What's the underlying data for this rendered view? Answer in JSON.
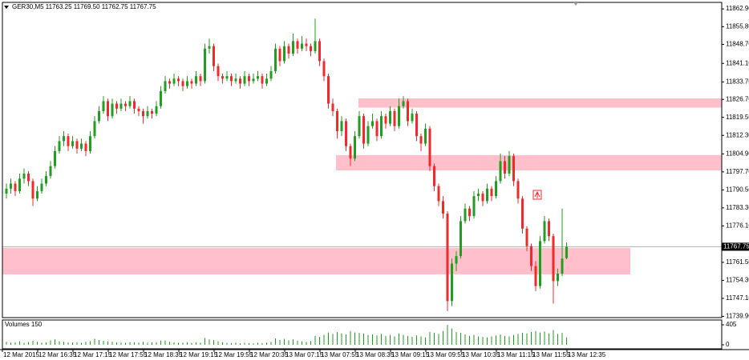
{
  "chart_data": {
    "type": "candlestick",
    "info": "GER30,M5  11763.25 11769.50 11762.75 11767.75",
    "up_color": "#1f9e1f",
    "down_color": "#ee2b2b",
    "zone_color": "#ffc0cb",
    "ylim": [
      11739.4,
      11865.5
    ],
    "yticks": [
      {
        "value": 11862.9,
        "label": "11862.90"
      },
      {
        "value": 11855.8,
        "label": "11855.80"
      },
      {
        "value": 11848.7,
        "label": "11848.70"
      },
      {
        "value": 11841.1,
        "label": "11841.10"
      },
      {
        "value": 11833.7,
        "label": "11833.70"
      },
      {
        "value": 11826.7,
        "label": "11826.70"
      },
      {
        "value": 11819.5,
        "label": "11819.50"
      },
      {
        "value": 11812.3,
        "label": "11812.30"
      },
      {
        "value": 11804.9,
        "label": "11804.90"
      },
      {
        "value": 11797.7,
        "label": "11797.70"
      },
      {
        "value": 11790.5,
        "label": "11790.50"
      },
      {
        "value": 11783.3,
        "label": "11783.30"
      },
      {
        "value": 11776.1,
        "label": "11776.10"
      },
      {
        "value": 11761.5,
        "label": "11761.50"
      },
      {
        "value": 11754.3,
        "label": "11754.30"
      },
      {
        "value": 11747.1,
        "label": "11747.10"
      },
      {
        "value": 11739.9,
        "label": "11739.90"
      }
    ],
    "xlabels": [
      "12 Mar 2015",
      "12 Mar 16:35",
      "12 Mar 17:15",
      "12 Mar 17:55",
      "12 Mar 18:35",
      "12 Mar 19:15",
      "12 Mar 19:55",
      "12 Mar 20:35",
      "13 Mar 07:15",
      "13 Mar 07:55",
      "13 Mar 08:35",
      "13 Mar 09:15",
      "13 Mar 09:55",
      "13 Mar 10:35",
      "13 Mar 11:15",
      "13 Mar 11:55",
      "13 Mar 12:35"
    ],
    "zones": [
      {
        "top": 11827.1,
        "bottom": 11823.4
      },
      {
        "top": 11804.4,
        "bottom": 11798.3
      },
      {
        "top": 11767.3,
        "bottom": 11756.7
      }
    ],
    "ohlc": [
      [
        11789,
        11793,
        11787,
        11791
      ],
      [
        11791,
        11795,
        11789,
        11793
      ],
      [
        11793,
        11794,
        11788,
        11790
      ],
      [
        11790,
        11797,
        11789,
        11795
      ],
      [
        11795,
        11799,
        11793,
        11797
      ],
      [
        11797,
        11798,
        11792,
        11794
      ],
      [
        11794,
        11795,
        11784,
        11787
      ],
      [
        11787,
        11792,
        11786,
        11790
      ],
      [
        11790,
        11795,
        11789,
        11793
      ],
      [
        11793,
        11798,
        11792,
        11796
      ],
      [
        11796,
        11802,
        11795,
        11800
      ],
      [
        11800,
        11808,
        11799,
        11806
      ],
      [
        11806,
        11812,
        11805,
        11810
      ],
      [
        11810,
        11814,
        11808,
        11812
      ],
      [
        11812,
        11813,
        11806,
        11808
      ],
      [
        11808,
        11812,
        11807,
        11810
      ],
      [
        11810,
        11811,
        11805,
        11807
      ],
      [
        11807,
        11811,
        11806,
        11809
      ],
      [
        11809,
        11810,
        11804,
        11806
      ],
      [
        11806,
        11814,
        11805,
        11812
      ],
      [
        11812,
        11820,
        11811,
        11818
      ],
      [
        11818,
        11824,
        11817,
        11822
      ],
      [
        11822,
        11828,
        11821,
        11826
      ],
      [
        11826,
        11827,
        11818,
        11820
      ],
      [
        11820,
        11827,
        11819,
        11825
      ],
      [
        11825,
        11826,
        11821,
        11823
      ],
      [
        11823,
        11827,
        11822,
        11825
      ],
      [
        11825,
        11826,
        11822,
        11824
      ],
      [
        11824,
        11828,
        11823,
        11826
      ],
      [
        11826,
        11827,
        11821,
        11823
      ],
      [
        11823,
        11824,
        11820,
        11822
      ],
      [
        11822,
        11823,
        11817,
        11820
      ],
      [
        11820,
        11824,
        11819,
        11822
      ],
      [
        11822,
        11823,
        11819,
        11821
      ],
      [
        11821,
        11826,
        11820,
        11824
      ],
      [
        11824,
        11832,
        11823,
        11830
      ],
      [
        11830,
        11836,
        11829,
        11834
      ],
      [
        11834,
        11835,
        11831,
        11833
      ],
      [
        11833,
        11837,
        11832,
        11835
      ],
      [
        11835,
        11836,
        11832,
        11834
      ],
      [
        11834,
        11835,
        11830,
        11832
      ],
      [
        11832,
        11836,
        11831,
        11834
      ],
      [
        11834,
        11835,
        11831,
        11833
      ],
      [
        11833,
        11838,
        11832,
        11836
      ],
      [
        11836,
        11837,
        11832,
        11834
      ],
      [
        11834,
        11849,
        11833,
        11847
      ],
      [
        11847,
        11851,
        11845,
        11848
      ],
      [
        11848,
        11849,
        11838,
        11840
      ],
      [
        11840,
        11841,
        11834,
        11836
      ],
      [
        11836,
        11837,
        11833,
        11835
      ],
      [
        11835,
        11838,
        11834,
        11836
      ],
      [
        11836,
        11837,
        11832,
        11834
      ],
      [
        11834,
        11837,
        11833,
        11835
      ],
      [
        11835,
        11836,
        11831,
        11833
      ],
      [
        11833,
        11838,
        11832,
        11836
      ],
      [
        11836,
        11837,
        11832,
        11834
      ],
      [
        11834,
        11837,
        11833,
        11835
      ],
      [
        11835,
        11838,
        11834,
        11836
      ],
      [
        11836,
        11837,
        11831,
        11833
      ],
      [
        11833,
        11837,
        11832,
        11835
      ],
      [
        11835,
        11840,
        11834,
        11838
      ],
      [
        11838,
        11849,
        11837,
        11847
      ],
      [
        11847,
        11848,
        11840,
        11842
      ],
      [
        11842,
        11850,
        11841,
        11848
      ],
      [
        11848,
        11849,
        11843,
        11845
      ],
      [
        11845,
        11853,
        11844,
        11850
      ],
      [
        11850,
        11851,
        11845,
        11847
      ],
      [
        11847,
        11852,
        11846,
        11849
      ],
      [
        11849,
        11851,
        11846,
        11848
      ],
      [
        11848,
        11849,
        11844,
        11846
      ],
      [
        11846,
        11859,
        11845,
        11850
      ],
      [
        11850,
        11851,
        11840,
        11842
      ],
      [
        11842,
        11843,
        11834,
        11836
      ],
      [
        11836,
        11837,
        11823,
        11825
      ],
      [
        11825,
        11827,
        11820,
        11822
      ],
      [
        11822,
        11823,
        11811,
        11814
      ],
      [
        11814,
        11820,
        11812,
        11818
      ],
      [
        11818,
        11819,
        11806,
        11808
      ],
      [
        11808,
        11809,
        11800,
        11803
      ],
      [
        11803,
        11814,
        11802,
        11812
      ],
      [
        11812,
        11822,
        11811,
        11820
      ],
      [
        11820,
        11821,
        11807,
        11809
      ],
      [
        11809,
        11818,
        11808,
        11816
      ],
      [
        11816,
        11821,
        11815,
        11818
      ],
      [
        11818,
        11819,
        11810,
        11812
      ],
      [
        11812,
        11822,
        11811,
        11820
      ],
      [
        11820,
        11821,
        11815,
        11817
      ],
      [
        11817,
        11824,
        11816,
        11822
      ],
      [
        11822,
        11823,
        11814,
        11816
      ],
      [
        11816,
        11827,
        11815,
        11824
      ],
      [
        11824,
        11828,
        11823,
        11826
      ],
      [
        11826,
        11827,
        11816,
        11818
      ],
      [
        11818,
        11823,
        11817,
        11821
      ],
      [
        11821,
        11822,
        11810,
        11812
      ],
      [
        11812,
        11813,
        11806,
        11809
      ],
      [
        11809,
        11817,
        11808,
        11815
      ],
      [
        11815,
        11816,
        11798,
        11800
      ],
      [
        11800,
        11801,
        11790,
        11792
      ],
      [
        11792,
        11793,
        11784,
        11786
      ],
      [
        11786,
        11788,
        11779,
        11781
      ],
      [
        11781,
        11782,
        11742,
        11746
      ],
      [
        11746,
        11763,
        11744,
        11761
      ],
      [
        11761,
        11766,
        11758,
        11764
      ],
      [
        11764,
        11780,
        11763,
        11778
      ],
      [
        11778,
        11785,
        11777,
        11783
      ],
      [
        11783,
        11784,
        11778,
        11780
      ],
      [
        11780,
        11790,
        11779,
        11788
      ],
      [
        11788,
        11791,
        11786,
        11789
      ],
      [
        11789,
        11790,
        11784,
        11786
      ],
      [
        11786,
        11793,
        11785,
        11791
      ],
      [
        11791,
        11792,
        11786,
        11788
      ],
      [
        11788,
        11796,
        11787,
        11794
      ],
      [
        11794,
        11805,
        11793,
        11802
      ],
      [
        11802,
        11804,
        11795,
        11797
      ],
      [
        11797,
        11806,
        11796,
        11804
      ],
      [
        11804,
        11805,
        11792,
        11794
      ],
      [
        11794,
        11795,
        11785,
        11787
      ],
      [
        11787,
        11788,
        11773,
        11775
      ],
      [
        11775,
        11776,
        11766,
        11768
      ],
      [
        11768,
        11769,
        11758,
        11760
      ],
      [
        11760,
        11762,
        11750,
        11752
      ],
      [
        11752,
        11772,
        11751,
        11770
      ],
      [
        11770,
        11780,
        11769,
        11778
      ],
      [
        11778,
        11779,
        11770,
        11772
      ],
      [
        11772,
        11773,
        11745,
        11754
      ],
      [
        11754,
        11759,
        11752,
        11757
      ],
      [
        11757,
        11783,
        11756,
        11763
      ],
      [
        11763.25,
        11769.5,
        11762.75,
        11767.75
      ]
    ],
    "volume": {
      "title": "Volumes 150",
      "color": "#1f9e1f",
      "ylim": [
        0,
        405
      ],
      "yticks": [
        0,
        405
      ],
      "values": [
        60,
        45,
        50,
        70,
        40,
        55,
        80,
        60,
        45,
        50,
        90,
        110,
        70,
        60,
        50,
        45,
        55,
        40,
        60,
        75,
        120,
        95,
        80,
        70,
        60,
        50,
        45,
        40,
        55,
        50,
        45,
        60,
        40,
        50,
        55,
        85,
        90,
        60,
        50,
        40,
        45,
        55,
        40,
        50,
        45,
        140,
        110,
        95,
        70,
        50,
        40,
        35,
        45,
        30,
        40,
        35,
        30,
        40,
        35,
        45,
        60,
        130,
        100,
        120,
        90,
        110,
        85,
        70,
        60,
        75,
        180,
        160,
        200,
        250,
        220,
        260,
        230,
        210,
        280,
        250,
        240,
        230,
        200,
        210,
        190,
        220,
        180,
        200,
        170,
        230,
        200,
        180,
        160,
        190,
        170,
        150,
        260,
        240,
        220,
        280,
        405,
        330,
        260,
        240,
        210,
        180,
        200,
        170,
        160,
        150,
        170,
        190,
        210,
        180,
        170,
        200,
        220,
        240,
        230,
        260,
        280,
        250,
        270,
        230,
        300,
        220,
        240,
        150
      ]
    }
  }
}
